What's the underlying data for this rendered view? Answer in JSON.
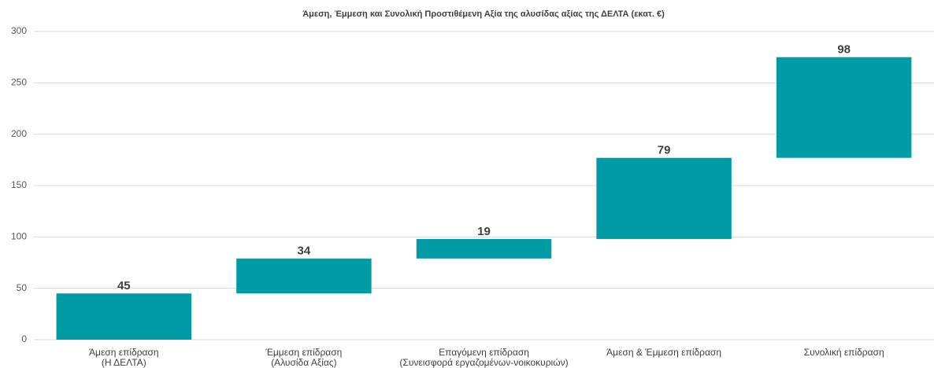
{
  "chart_data": {
    "type": "waterfall",
    "title": "Άμεση, Έμμεση και Συνολική Προστιθέμενη Αξία της αλυσίδας αξίας της ΔΕΛΤΑ (εκατ. €)",
    "categories": [
      [
        "Άμεση επίδραση",
        "(Η ΔΕΛΤΑ)"
      ],
      [
        "Έμμεση επίδραση",
        "(Αλυσίδα Αξίας)"
      ],
      [
        "Επαγόμενη επίδραση",
        "(Συνεισφορά εργαζομένων-νοικοκυριών)"
      ],
      [
        "Άμεση & Έμμεση επίδραση"
      ],
      [
        "Συνολική επίδραση"
      ]
    ],
    "values": [
      45,
      34,
      19,
      79,
      98
    ],
    "color": "#009ca6",
    "ylim": [
      0,
      300
    ],
    "yticks": [
      0,
      50,
      100,
      150,
      200,
      250,
      300
    ],
    "grid": true
  }
}
